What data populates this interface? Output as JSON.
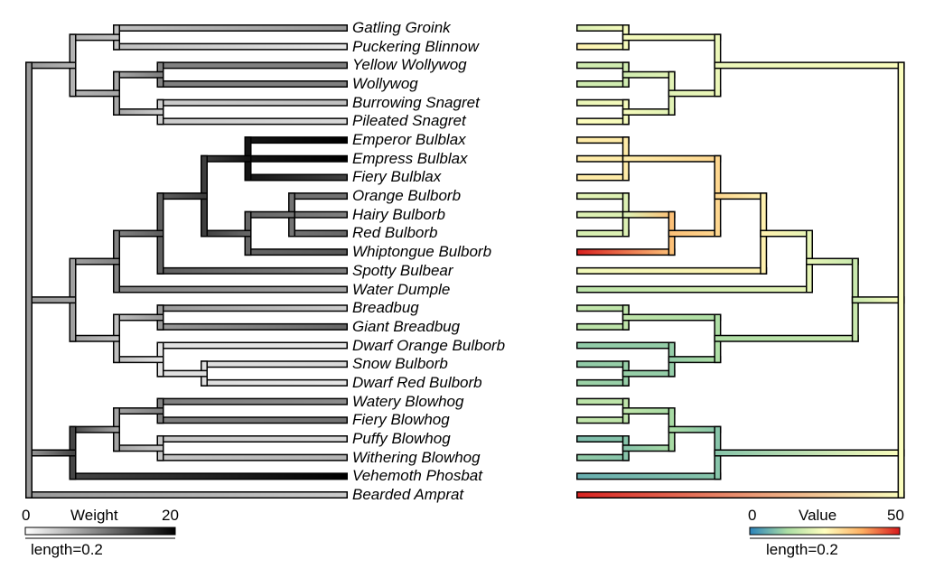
{
  "taxa": [
    "Gatling Groink",
    "Puckering Blinnow",
    "Yellow Wollywog",
    "Wollywog",
    "Burrowing Snagret",
    "Pileated Snagret",
    "Emperor Bulblax",
    "Empress Bulblax",
    "Fiery Bulblax",
    "Orange Bulborb",
    "Hairy Bulborb",
    "Red Bulborb",
    "Whiptongue Bulborb",
    "Spotty Bulbear",
    "Water Dumple",
    "Breadbug",
    "Giant Breadbug",
    "Dwarf Orange Bulborb",
    "Snow Bulborb",
    "Dwarf Red Bulborb",
    "Watery Blowhog",
    "Fiery Blowhog",
    "Puffy Blowhog",
    "Withering Blowhog",
    "Vehemoth Phosbat",
    "Bearded Amprat"
  ],
  "tree": {
    "kids": [
      {
        "kids": [
          {
            "kids": [
              {
                "tip": 0
              },
              {
                "tip": 1
              }
            ]
          },
          {
            "kids": [
              {
                "kids": [
                  {
                    "tip": 2
                  },
                  {
                    "tip": 3
                  }
                ]
              },
              {
                "kids": [
                  {
                    "tip": 4
                  },
                  {
                    "tip": 5
                  }
                ]
              }
            ]
          }
        ]
      },
      {
        "kids": [
          {
            "kids": [
              {
                "kids": [
                  {
                    "kids": [
                      {
                        "kids": [
                          {
                            "tip": 6
                          },
                          {
                            "tip": 7
                          },
                          {
                            "tip": 8
                          }
                        ]
                      },
                      {
                        "kids": [
                          {
                            "kids": [
                              {
                                "tip": 9
                              },
                              {
                                "tip": 10
                              },
                              {
                                "tip": 11
                              }
                            ]
                          },
                          {
                            "tip": 12
                          }
                        ]
                      }
                    ]
                  },
                  {
                    "tip": 13
                  }
                ]
              },
              {
                "tip": 14
              }
            ]
          },
          {
            "kids": [
              {
                "kids": [
                  {
                    "tip": 15
                  },
                  {
                    "tip": 16
                  }
                ]
              },
              {
                "kids": [
                  {
                    "tip": 17
                  },
                  {
                    "kids": [
                      {
                        "tip": 18
                      },
                      {
                        "tip": 19
                      }
                    ]
                  }
                ]
              }
            ]
          }
        ]
      },
      {
        "kids": [
          {
            "kids": [
              {
                "kids": [
                  {
                    "tip": 20
                  },
                  {
                    "tip": 21
                  }
                ]
              },
              {
                "kids": [
                  {
                    "tip": 22
                  },
                  {
                    "tip": 23
                  }
                ]
              }
            ]
          },
          {
            "tip": 24
          }
        ]
      },
      {
        "tip": 25
      }
    ]
  },
  "tip_weight": [
    8,
    2,
    10,
    10,
    5,
    3,
    20,
    20,
    15,
    11,
    10,
    12,
    13,
    10,
    7,
    4,
    12,
    2,
    3,
    2,
    9,
    11,
    3,
    6,
    22,
    4
  ],
  "tip_value": [
    20,
    27,
    18,
    18,
    22,
    25,
    28,
    28,
    28,
    21,
    20,
    19,
    49,
    23,
    15,
    16,
    15,
    10,
    10,
    11,
    15,
    16,
    8,
    10,
    6,
    49
  ],
  "left_legend": {
    "title": "Weight",
    "min_label": "0",
    "max_label": "20",
    "length_label": "length=0.2",
    "color_low": "#ffffff",
    "color_high": "#000000"
  },
  "right_legend": {
    "title": "Value",
    "min_label": "0",
    "max_label": "50",
    "length_label": "length=0.2",
    "colors": [
      "#2b83ba",
      "#abdda4",
      "#ffffbf",
      "#fdae61",
      "#d7191c"
    ]
  }
}
